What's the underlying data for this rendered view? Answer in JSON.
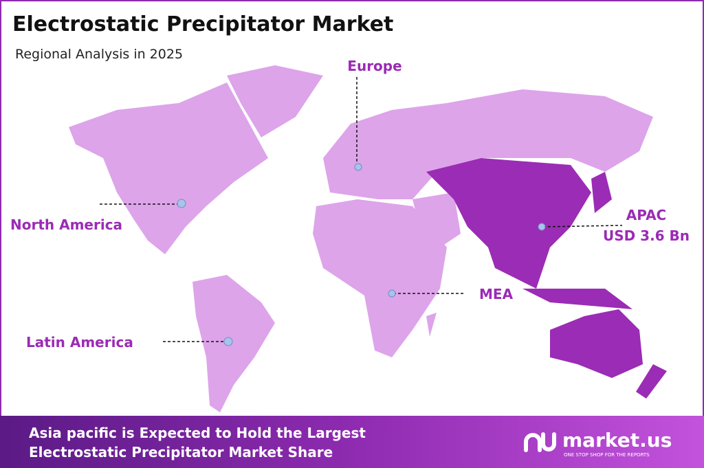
{
  "header": {
    "title": "Electrostatic Precipitator Market",
    "subtitle": "Regional Analysis in 2025"
  },
  "regions": [
    {
      "label": "Europe"
    },
    {
      "label": "North America"
    },
    {
      "label": "APAC",
      "value_label": "USD 3.6 Bn"
    },
    {
      "label": "MEA"
    },
    {
      "label": "Latin America"
    }
  ],
  "footer": {
    "text_lines": [
      "Asia pacific  is Expected to Hold the Largest",
      "Electrostatic Precipitator Market Share"
    ],
    "brand": "market.us",
    "tagline": "ONE STOP SHOP FOR THE REPORTS"
  }
}
